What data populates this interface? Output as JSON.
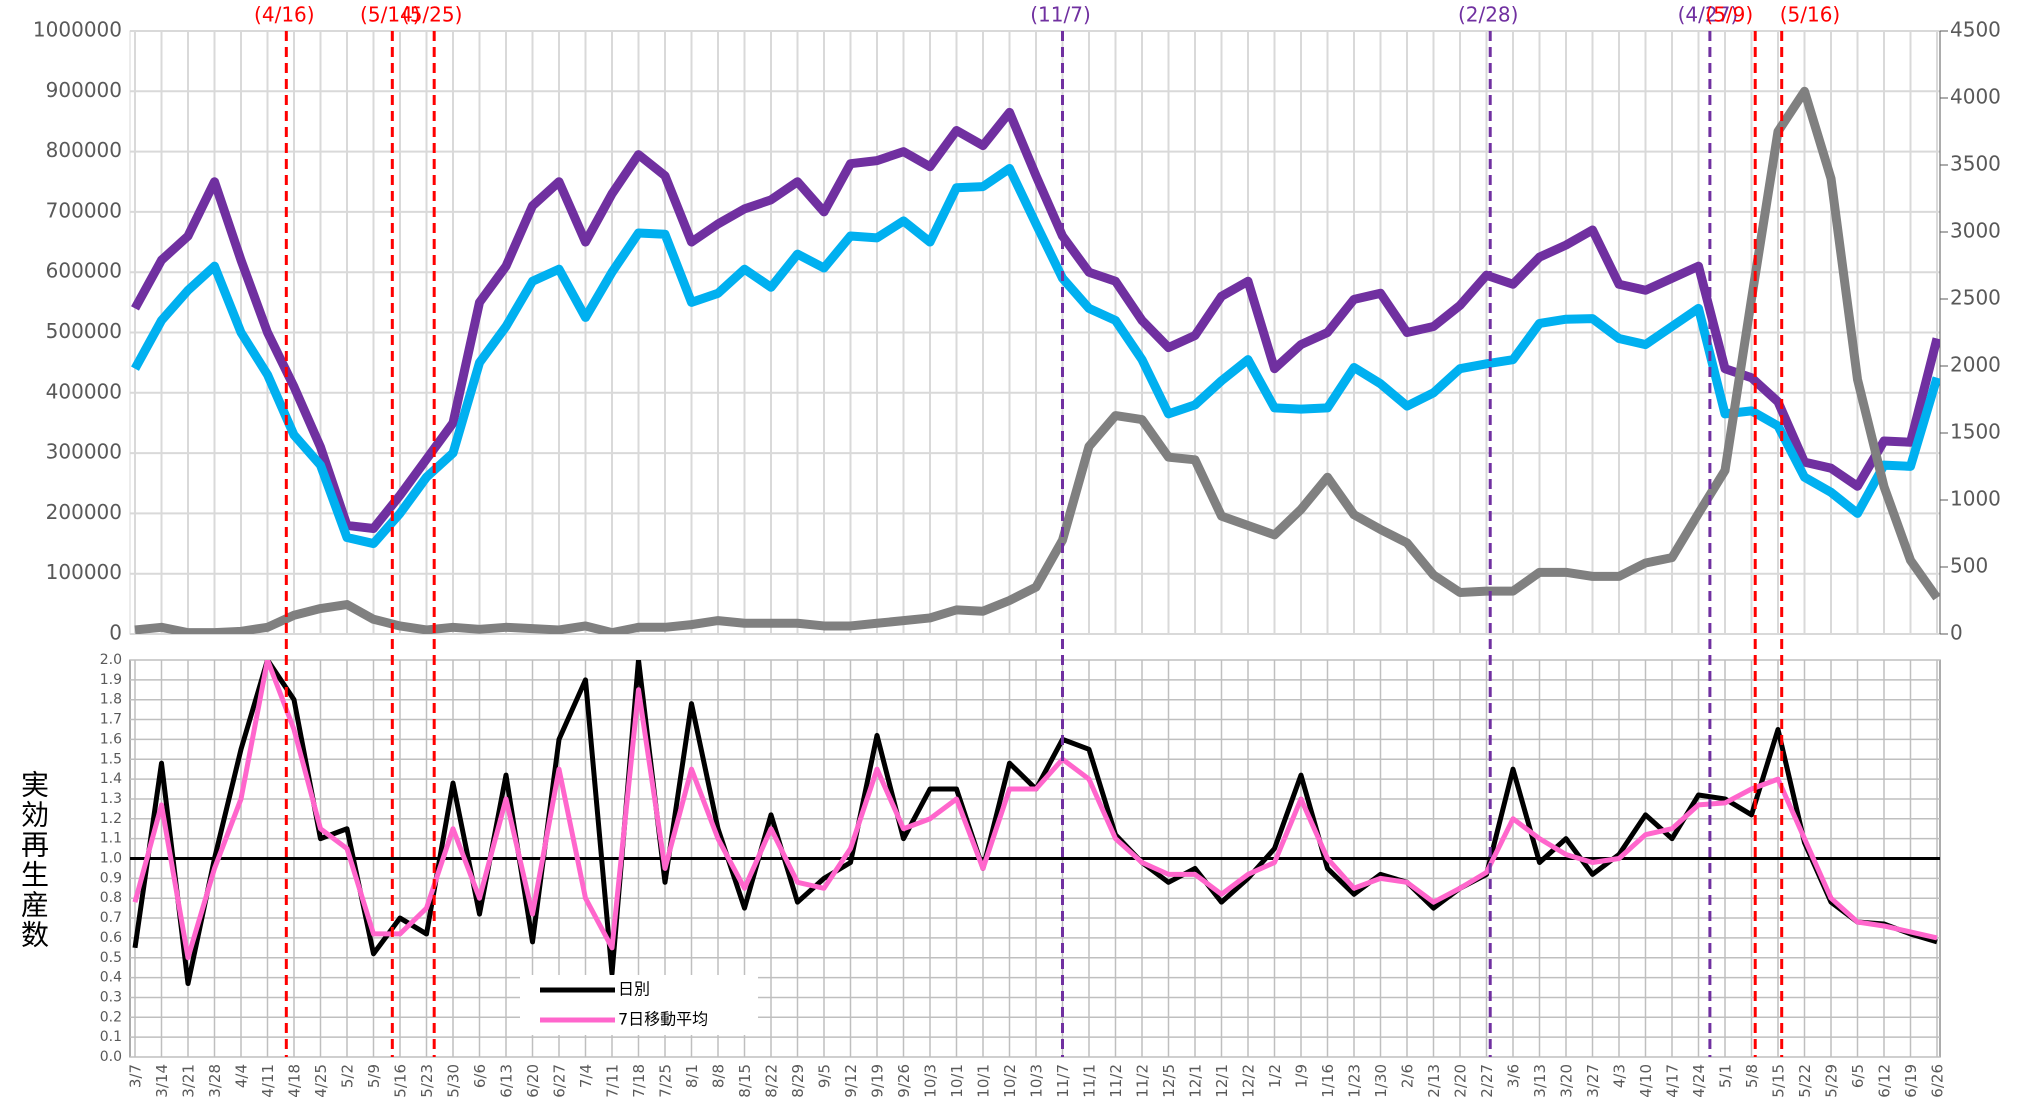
{
  "chart_data": [
    {
      "type": "line",
      "ylim": [
        0,
        1000000
      ],
      "yticks": [
        0,
        100000,
        200000,
        300000,
        400000,
        500000,
        600000,
        700000,
        800000,
        900000,
        1000000
      ],
      "y2lim": [
        0,
        4500
      ],
      "y2ticks": [
        0,
        500,
        1000,
        1500,
        2000,
        2500,
        3000,
        3500,
        4000,
        4500
      ],
      "grid": true,
      "series": [
        {
          "color": "#7030a0",
          "values": [
            540000,
            620000,
            660000,
            750000,
            620000,
            500000,
            410000,
            310000,
            180000,
            175000,
            230000,
            290000,
            350000,
            550000,
            610000,
            710000,
            750000,
            650000,
            730000,
            795000,
            760000,
            650000,
            680000,
            705000,
            720000,
            750000,
            700000,
            780000,
            785000,
            800000,
            775000,
            835000,
            810000,
            865000,
            760000,
            660000,
            600000,
            585000,
            520000,
            475000,
            495000,
            560000,
            585000,
            440000,
            480000,
            500000,
            555000,
            565000,
            500000,
            510000,
            545000,
            595000,
            580000,
            625000,
            645000,
            670000,
            580000,
            570000,
            590000,
            610000,
            440000,
            425000,
            385000,
            285000,
            275000,
            245000,
            320000,
            318000,
            490000
          ]
        },
        {
          "color": "#00b0f0",
          "values": [
            440000,
            520000,
            570000,
            610000,
            500000,
            430000,
            330000,
            280000,
            160000,
            150000,
            200000,
            260000,
            300000,
            450000,
            510000,
            585000,
            605000,
            525000,
            600000,
            665000,
            663000,
            550000,
            565000,
            605000,
            575000,
            630000,
            607000,
            660000,
            657000,
            685000,
            650000,
            740000,
            742000,
            772000,
            680000,
            590000,
            540000,
            520000,
            455000,
            365000,
            380000,
            420000,
            455000,
            375000,
            373000,
            375000,
            442000,
            415000,
            378000,
            400000,
            440000,
            448000,
            455000,
            515000,
            522000,
            523000,
            490000,
            480000,
            510000,
            540000,
            365000,
            370000,
            345000,
            260000,
            235000,
            200000,
            280000,
            278000,
            425000
          ]
        },
        {
          "color": "#808080",
          "axis": "y2",
          "values": [
            30,
            50,
            10,
            10,
            20,
            50,
            140,
            190,
            220,
            110,
            60,
            30,
            50,
            35,
            50,
            40,
            30,
            60,
            10,
            50,
            50,
            70,
            100,
            80,
            80,
            80,
            60,
            60,
            80,
            100,
            120,
            180,
            170,
            250,
            350,
            700,
            1400,
            1630,
            1600,
            1320,
            1300,
            880,
            810,
            740,
            930,
            1170,
            890,
            780,
            680,
            440,
            310,
            320,
            320,
            460,
            460,
            430,
            430,
            530,
            570,
            900,
            1220,
            2500,
            3750,
            4050,
            3400,
            1900,
            1100,
            550,
            270
          ]
        }
      ],
      "annotations": [
        {
          "label": "(4/16)",
          "x_index": 5.71,
          "color": "#ff0000"
        },
        {
          "label": "(5/14)",
          "x_index": 9.71,
          "color": "#ff0000"
        },
        {
          "label": "(5/25)",
          "x_index": 11.29,
          "color": "#ff0000"
        },
        {
          "label": "(11/7)",
          "x_index": 35,
          "color": "#7030a0"
        },
        {
          "label": "(2/28)",
          "x_index": 51.14,
          "color": "#7030a0"
        },
        {
          "label": "(4/27)",
          "x_index": 59.43,
          "color": "#7030a0"
        },
        {
          "label": "(5/9)",
          "x_index": 61.14,
          "color": "#ff0000"
        },
        {
          "label": "(5/16)",
          "x_index": 62.14,
          "color": "#ff0000"
        }
      ]
    },
    {
      "type": "line",
      "ylabel": "実効再生産数",
      "categories": [
        "3/7",
        "3/14",
        "3/21",
        "3/28",
        "4/4",
        "4/11",
        "4/18",
        "4/25",
        "5/2",
        "5/9",
        "5/16",
        "5/23",
        "5/30",
        "6/6",
        "6/13",
        "6/20",
        "6/27",
        "7/4",
        "7/11",
        "7/18",
        "7/25",
        "8/1",
        "8/8",
        "8/15",
        "8/22",
        "8/29",
        "9/5",
        "9/12",
        "9/19",
        "9/26",
        "10/3",
        "10/1",
        "10/1",
        "10/2",
        "10/3",
        "11/7",
        "11/1",
        "11/2",
        "11/2",
        "12/5",
        "12/1",
        "12/1",
        "12/2",
        "1/2",
        "1/9",
        "1/16",
        "1/23",
        "1/30",
        "2/6",
        "2/13",
        "2/20",
        "2/27",
        "3/6",
        "3/13",
        "3/20",
        "3/27",
        "4/3",
        "4/10",
        "4/17",
        "4/24",
        "5/1",
        "5/8",
        "5/15",
        "5/22",
        "5/29",
        "6/5",
        "6/12",
        "6/19",
        "6/26"
      ],
      "ylim": [
        0,
        2
      ],
      "yticks": [
        {
          "value": 0,
          "label": "0.0"
        },
        0.1,
        0.2,
        0.3,
        0.4,
        0.5,
        0.6,
        0.7,
        0.8,
        0.9,
        {
          "value": 1,
          "label": "1.0"
        },
        1.1,
        1.2,
        1.3,
        1.4,
        1.5,
        1.6,
        1.7,
        1.8,
        1.9,
        {
          "value": 2,
          "label": "2.0"
        }
      ],
      "grid": true,
      "hline": 1,
      "series": [
        {
          "name": "日別",
          "color": "#000000",
          "values": [
            0.55,
            1.48,
            0.37,
            1.0,
            1.55,
            2.0,
            1.8,
            1.1,
            1.15,
            0.52,
            0.7,
            0.62,
            1.38,
            0.72,
            1.42,
            0.58,
            1.6,
            1.9,
            0.42,
            2.0,
            0.88,
            1.78,
            1.15,
            0.75,
            1.22,
            0.78,
            0.9,
            0.98,
            1.62,
            1.1,
            1.35,
            1.35,
            0.95,
            1.48,
            1.35,
            1.6,
            1.55,
            1.12,
            0.98,
            0.88,
            0.95,
            0.78,
            0.9,
            1.05,
            1.42,
            0.95,
            0.82,
            0.92,
            0.88,
            0.75,
            0.85,
            0.92,
            1.45,
            0.98,
            1.1,
            0.92,
            1.02,
            1.22,
            1.1,
            1.32,
            1.3,
            1.22,
            1.65,
            1.08,
            0.78,
            0.68,
            0.67,
            0.62,
            0.58
          ]
        },
        {
          "name": "7日移動平均",
          "color": "#ff66cc",
          "values": [
            0.78,
            1.27,
            0.5,
            0.95,
            1.3,
            2.0,
            1.65,
            1.15,
            1.05,
            0.62,
            0.62,
            0.75,
            1.15,
            0.8,
            1.3,
            0.72,
            1.45,
            0.8,
            0.55,
            1.85,
            0.95,
            1.45,
            1.1,
            0.85,
            1.15,
            0.88,
            0.85,
            1.05,
            1.45,
            1.15,
            1.2,
            1.3,
            0.95,
            1.35,
            1.35,
            1.5,
            1.4,
            1.1,
            0.98,
            0.92,
            0.92,
            0.82,
            0.92,
            0.98,
            1.3,
            1.0,
            0.85,
            0.9,
            0.88,
            0.78,
            0.85,
            0.93,
            1.2,
            1.1,
            1.02,
            0.98,
            1.0,
            1.12,
            1.15,
            1.27,
            1.28,
            1.35,
            1.4,
            1.1,
            0.8,
            0.68,
            0.66,
            0.63,
            0.6
          ]
        }
      ]
    }
  ]
}
